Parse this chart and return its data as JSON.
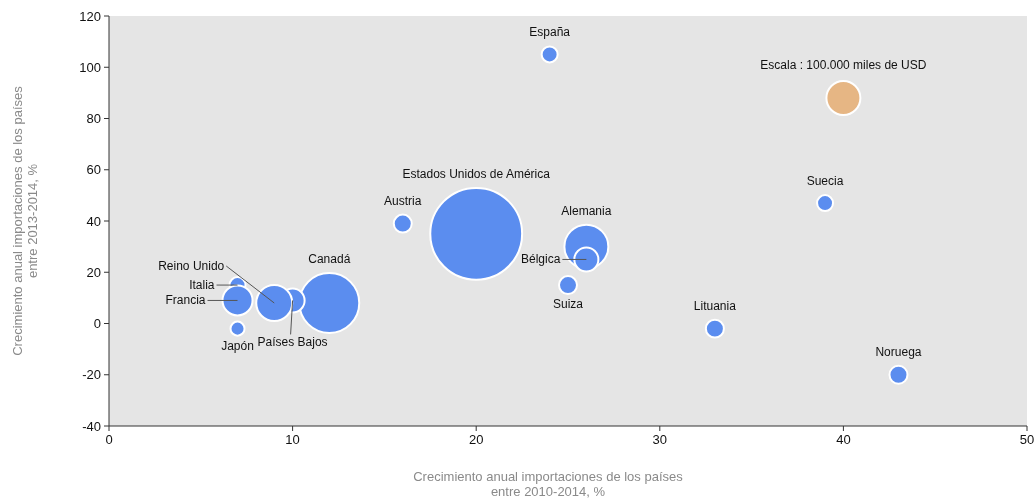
{
  "chart_data": {
    "type": "bubble",
    "xlabel": "Crecimiento anual importaciones de los países entre 2010-2014, %",
    "ylabel": "Crecimiento anual importaciones de los países entre 2013-2014, %",
    "xlim": [
      0,
      50
    ],
    "xticks": [
      0,
      10,
      20,
      30,
      40,
      50
    ],
    "ylim": [
      -40,
      120
    ],
    "yticks": [
      -40,
      -20,
      0,
      20,
      40,
      60,
      80,
      100,
      120
    ],
    "grid": false,
    "size_legend": [
      {
        "value": 100000,
        "label": "Escala : 100.000 miles de USD"
      }
    ],
    "series": [
      {
        "name": "España",
        "color": "#5b8def",
        "x": [
          24
        ],
        "values": [
          105
        ],
        "sizes": [
          22000
        ]
      },
      {
        "name": "Suecia",
        "color": "#5b8def",
        "x": [
          39
        ],
        "values": [
          47
        ],
        "sizes": [
          22000
        ]
      },
      {
        "name": "Austria",
        "color": "#5b8def",
        "x": [
          16
        ],
        "values": [
          39
        ],
        "sizes": [
          28000
        ]
      },
      {
        "name": "Estados Unidos de América",
        "color": "#5b8def",
        "x": [
          20
        ],
        "values": [
          35
        ],
        "sizes": [
          730000
        ]
      },
      {
        "name": "Alemania",
        "color": "#5b8def",
        "x": [
          26
        ],
        "values": [
          30
        ],
        "sizes": [
          167000
        ]
      },
      {
        "name": "Bélgica",
        "color": "#5b8def",
        "x": [
          26
        ],
        "values": [
          25
        ],
        "sizes": [
          50000
        ]
      },
      {
        "name": "Suiza",
        "color": "#5b8def",
        "x": [
          25
        ],
        "values": [
          15
        ],
        "sizes": [
          28000
        ]
      },
      {
        "name": "Canadá",
        "color": "#5b8def",
        "x": [
          12
        ],
        "values": [
          8
        ],
        "sizes": [
          310000
        ]
      },
      {
        "name": "Países Bajos",
        "color": "#5b8def",
        "x": [
          10
        ],
        "values": [
          9
        ],
        "sizes": [
          50000
        ]
      },
      {
        "name": "Reino Unido",
        "color": "#5b8def",
        "x": [
          9
        ],
        "values": [
          8
        ],
        "sizes": [
          112000
        ]
      },
      {
        "name": "Italia",
        "color": "#5b8def",
        "x": [
          7
        ],
        "values": [
          15
        ],
        "sizes": [
          22000
        ]
      },
      {
        "name": "Francia",
        "color": "#5b8def",
        "x": [
          7
        ],
        "values": [
          9
        ],
        "sizes": [
          78000
        ]
      },
      {
        "name": "Japón",
        "color": "#5b8def",
        "x": [
          7
        ],
        "values": [
          -2
        ],
        "sizes": [
          17000
        ]
      },
      {
        "name": "Lituania",
        "color": "#5b8def",
        "x": [
          33
        ],
        "values": [
          -2
        ],
        "sizes": [
          28000
        ]
      },
      {
        "name": "Noruega",
        "color": "#5b8def",
        "x": [
          43
        ],
        "values": [
          -20
        ],
        "sizes": [
          28000
        ]
      }
    ]
  }
}
